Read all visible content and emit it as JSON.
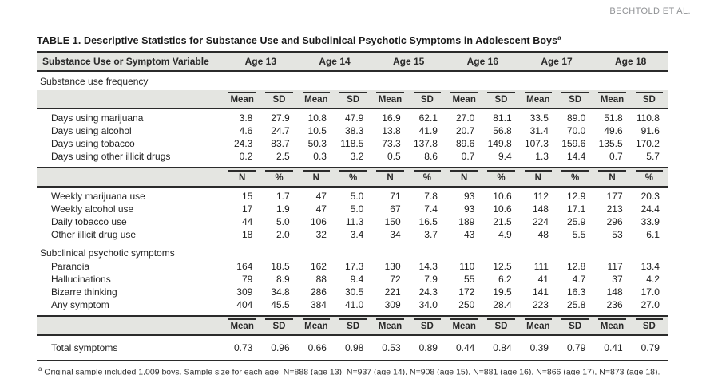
{
  "running_head": "BECHTOLD ET AL.",
  "table": {
    "label": "TABLE 1.",
    "title": "Descriptive Statistics for Substance Use and Subclinical Psychotic Symptoms in Adolescent Boys",
    "title_footnote_marker": "a",
    "variable_header": "Substance Use or Symptom Variable",
    "age_headers": [
      "Age 13",
      "Age 14",
      "Age 15",
      "Age 16",
      "Age 17",
      "Age 18"
    ],
    "blocks": [
      {
        "kind": "section",
        "text": "Substance use frequency"
      },
      {
        "kind": "stats",
        "topRule": false,
        "cells": [
          "Mean",
          "SD",
          "Mean",
          "SD",
          "Mean",
          "SD",
          "Mean",
          "SD",
          "Mean",
          "SD",
          "Mean",
          "SD"
        ]
      },
      {
        "kind": "row",
        "first": true,
        "label": "Days using marijuana",
        "values": [
          "3.8",
          "27.9",
          "10.8",
          "47.9",
          "16.9",
          "62.1",
          "27.0",
          "81.1",
          "33.5",
          "89.0",
          "51.8",
          "110.8"
        ]
      },
      {
        "kind": "row",
        "label": "Days using alcohol",
        "values": [
          "4.6",
          "24.7",
          "10.5",
          "38.3",
          "13.8",
          "41.9",
          "20.7",
          "56.8",
          "31.4",
          "70.0",
          "49.6",
          "91.6"
        ]
      },
      {
        "kind": "row",
        "label": "Days using tobacco",
        "values": [
          "24.3",
          "83.7",
          "50.3",
          "118.5",
          "73.3",
          "137.8",
          "89.6",
          "149.8",
          "107.3",
          "159.6",
          "135.5",
          "170.2"
        ]
      },
      {
        "kind": "row",
        "last": true,
        "label": "Days using other illicit drugs",
        "values": [
          "0.2",
          "2.5",
          "0.3",
          "3.2",
          "0.5",
          "8.6",
          "0.7",
          "9.4",
          "1.3",
          "14.4",
          "0.7",
          "5.7"
        ]
      },
      {
        "kind": "stats",
        "topRule": true,
        "cells": [
          "N",
          "%",
          "N",
          "%",
          "N",
          "%",
          "N",
          "%",
          "N",
          "%",
          "N",
          "%"
        ]
      },
      {
        "kind": "row",
        "first": true,
        "label": "Weekly marijuana use",
        "values": [
          "15",
          "1.7",
          "47",
          "5.0",
          "71",
          "7.8",
          "93",
          "10.6",
          "112",
          "12.9",
          "177",
          "20.3"
        ]
      },
      {
        "kind": "row",
        "label": "Weekly alcohol use",
        "values": [
          "17",
          "1.9",
          "47",
          "5.0",
          "67",
          "7.4",
          "93",
          "10.6",
          "148",
          "17.1",
          "213",
          "24.4"
        ]
      },
      {
        "kind": "row",
        "label": "Daily tobacco use",
        "values": [
          "44",
          "5.0",
          "106",
          "11.3",
          "150",
          "16.5",
          "189",
          "21.5",
          "224",
          "25.9",
          "296",
          "33.9"
        ]
      },
      {
        "kind": "row",
        "last": true,
        "label": "Other illicit drug use",
        "values": [
          "18",
          "2.0",
          "32",
          "3.4",
          "34",
          "3.7",
          "43",
          "4.9",
          "48",
          "5.5",
          "53",
          "6.1"
        ]
      },
      {
        "kind": "section",
        "text": "Subclinical psychotic symptoms"
      },
      {
        "kind": "row",
        "label": "Paranoia",
        "values": [
          "164",
          "18.5",
          "162",
          "17.3",
          "130",
          "14.3",
          "110",
          "12.5",
          "111",
          "12.8",
          "117",
          "13.4"
        ]
      },
      {
        "kind": "row",
        "label": "Hallucinations",
        "values": [
          "79",
          "8.9",
          "88",
          "9.4",
          "72",
          "7.9",
          "55",
          "6.2",
          "41",
          "4.7",
          "37",
          "4.2"
        ]
      },
      {
        "kind": "row",
        "label": "Bizarre thinking",
        "values": [
          "309",
          "34.8",
          "286",
          "30.5",
          "221",
          "24.3",
          "172",
          "19.5",
          "141",
          "16.3",
          "148",
          "17.0"
        ]
      },
      {
        "kind": "row",
        "last": true,
        "label": "Any symptom",
        "values": [
          "404",
          "45.5",
          "384",
          "41.0",
          "309",
          "34.0",
          "250",
          "28.4",
          "223",
          "25.8",
          "236",
          "27.0"
        ]
      },
      {
        "kind": "stats",
        "topRule": true,
        "cells": [
          "Mean",
          "SD",
          "Mean",
          "SD",
          "Mean",
          "SD",
          "Mean",
          "SD",
          "Mean",
          "SD",
          "Mean",
          "SD"
        ]
      },
      {
        "kind": "row",
        "total": true,
        "label": "Total symptoms",
        "values": [
          "0.73",
          "0.96",
          "0.66",
          "0.98",
          "0.53",
          "0.89",
          "0.44",
          "0.84",
          "0.39",
          "0.79",
          "0.41",
          "0.79"
        ]
      }
    ]
  },
  "footnote": {
    "marker": "a",
    "text": "Original sample included 1,009 boys. Sample size for each age: N=888 (age 13), N=937 (age 14), N=908 (age 15), N=881 (age 16), N=866 (age 17), N=873 (age 18)."
  },
  "colors": {
    "band_background": "#e4e5e1",
    "rule": "#2b2b2b",
    "running_head_text": "#8f9194",
    "body_text": "#222222"
  }
}
